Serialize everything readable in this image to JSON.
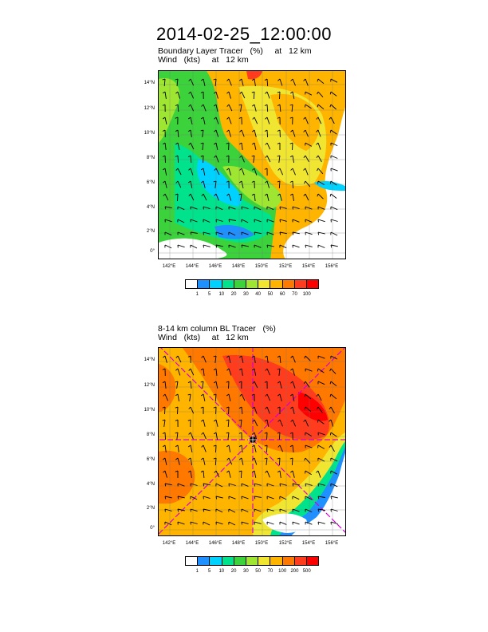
{
  "title": "2014-02-25_12:00:00",
  "panel1": {
    "header_line1": "Boundary Layer Tracer   (%)     at   12 km",
    "header_line2": "Wind   (kts)     at   12 km",
    "colorbar_labels": [
      "1",
      "5",
      "10",
      "20",
      "30",
      "40",
      "50",
      "60",
      "70",
      "100"
    ],
    "colorbar_colors": [
      "#ffffff",
      "#1e90ff",
      "#00d2ff",
      "#00e28c",
      "#3cd23c",
      "#9ee632",
      "#f0e632",
      "#ffb400",
      "#ff7800",
      "#ff3c1e",
      "#ff0000"
    ]
  },
  "panel2": {
    "header_line1": "8-14 km column BL Tracer   (%)",
    "header_line2": "Wind   (kts)     at   12 km",
    "colorbar_labels": [
      "1",
      "5",
      "10",
      "20",
      "30",
      "50",
      "70",
      "100",
      "200",
      "500"
    ],
    "colorbar_colors": [
      "#ffffff",
      "#1e90ff",
      "#00d2ff",
      "#00e28c",
      "#3cd23c",
      "#9ee632",
      "#f0e632",
      "#ffb400",
      "#ff7800",
      "#ff3c1e",
      "#ff0000"
    ]
  },
  "lat_labels": [
    "14°N",
    "12°N",
    "10°N",
    "8°N",
    "6°N",
    "4°N",
    "2°N",
    "0°"
  ],
  "lon_labels": [
    "142°E",
    "144°E",
    "146°E",
    "148°E",
    "150°E",
    "152°E",
    "154°E",
    "156°E"
  ],
  "fill_colors": {
    "white": "#ffffff",
    "blue": "#1e90ff",
    "cyan": "#00d2ff",
    "teal": "#00e28c",
    "green": "#3cd23c",
    "lime": "#9ee632",
    "yellow": "#f0e632",
    "gold": "#ffb400",
    "orange": "#ff7800",
    "redorange": "#ff3c1e",
    "red": "#ff0000"
  },
  "storm_marker_color": "#000000",
  "radial_line_color": "#d600d6"
}
